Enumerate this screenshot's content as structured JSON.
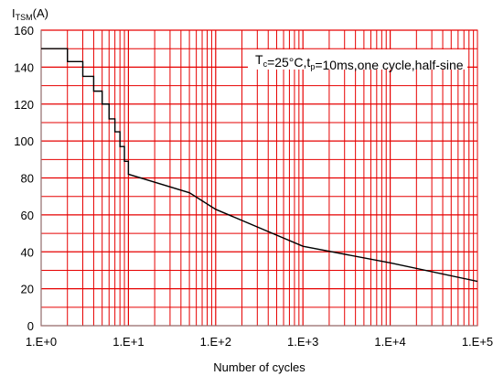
{
  "chart_data": {
    "type": "line",
    "title": "",
    "xlabel": "Number of cycles",
    "ylabel": {
      "main": "I",
      "sub": "TSM",
      "unit": "(A)"
    },
    "x_scale": "log",
    "xlim": [
      1,
      100000
    ],
    "ylim": [
      0,
      160
    ],
    "x_tick_values": [
      1,
      10,
      100,
      1000,
      10000,
      100000
    ],
    "x_tick_labels": [
      "1.E+0",
      "1.E+1",
      "1.E+2",
      "1.E+3",
      "1.E+4",
      "1.E+5"
    ],
    "y_tick_values": [
      0,
      20,
      40,
      60,
      80,
      100,
      120,
      140,
      160
    ],
    "y_tick_labels": [
      "0",
      "20",
      "40",
      "60",
      "80",
      "100",
      "120",
      "140",
      "160"
    ],
    "grid": true,
    "grid_color": "#e60000",
    "line_color": "#000000",
    "annotation": {
      "parts": [
        {
          "t": "T",
          "sub": false
        },
        {
          "t": "c",
          "sub": true
        },
        {
          "t": "=25°C,t",
          "sub": false
        },
        {
          "t": "p",
          "sub": true
        },
        {
          "t": "=10ms,one cycle,half-sine",
          "sub": false
        }
      ]
    },
    "series": [
      {
        "x": [
          1,
          2,
          2,
          3,
          3,
          4,
          4,
          5,
          5,
          6,
          6,
          7,
          7,
          8,
          8,
          9,
          9,
          10,
          10,
          50,
          100,
          1000,
          10000,
          100000
        ],
        "y": [
          150,
          150,
          143,
          143,
          135,
          135,
          127,
          127,
          120,
          120,
          112,
          112,
          105,
          105,
          97,
          97,
          89,
          89,
          82,
          72,
          63,
          43,
          34,
          24
        ]
      }
    ]
  }
}
